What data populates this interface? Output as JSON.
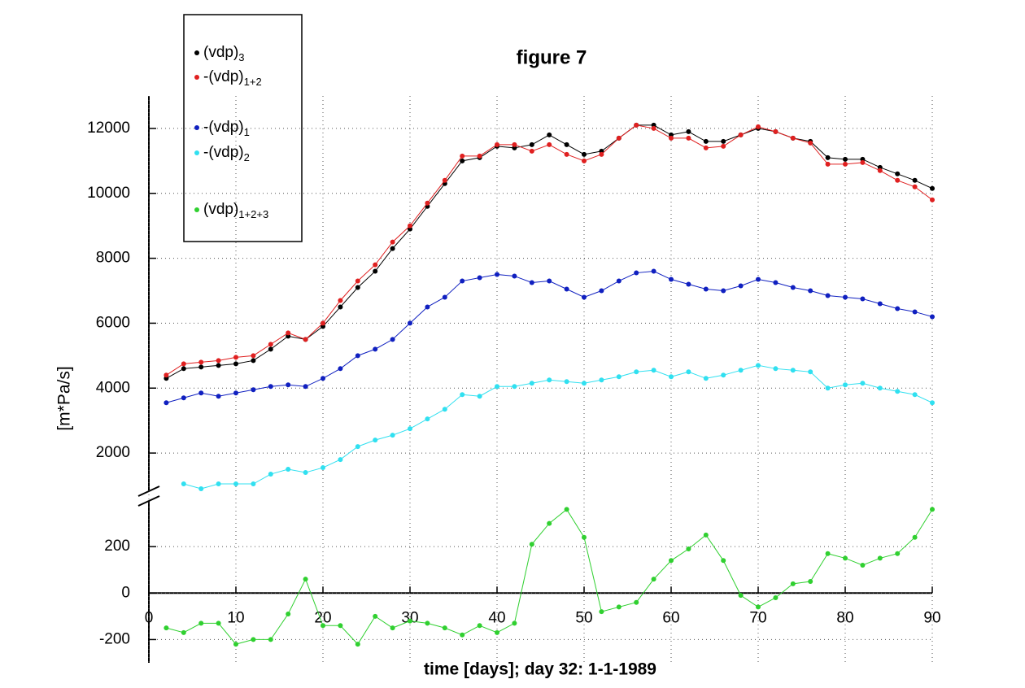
{
  "chart_data": {
    "type": "line",
    "title": "figure 7",
    "x_label": "time [days]; day 32: 1-1-1989",
    "y_label": "[m*Pa/s]",
    "x": [
      2,
      4,
      6,
      8,
      10,
      12,
      14,
      16,
      18,
      20,
      22,
      24,
      26,
      28,
      30,
      32,
      34,
      36,
      38,
      40,
      42,
      44,
      46,
      48,
      50,
      52,
      54,
      56,
      58,
      60,
      62,
      64,
      66,
      68,
      70,
      72,
      74,
      76,
      78,
      80,
      82,
      84,
      86,
      88,
      90
    ],
    "xlim": [
      0,
      90
    ],
    "xticks": [
      0,
      10,
      20,
      30,
      40,
      50,
      60,
      70,
      80,
      90
    ],
    "ylim": [
      800,
      13000
    ],
    "yticks": [
      2000,
      4000,
      6000,
      8000,
      10000,
      12000
    ],
    "y2lim": [
      -300,
      400
    ],
    "y2ticks": [
      -200,
      0,
      200
    ],
    "grid": true,
    "legend": "upper left",
    "series": [
      {
        "name": "(vdp)",
        "subscript": "3",
        "color": "#000000",
        "values": [
          4300,
          4600,
          4650,
          4700,
          4750,
          4850,
          5200,
          5600,
          5500,
          5900,
          6500,
          7100,
          7600,
          8300,
          8900,
          9600,
          10300,
          11000,
          11100,
          11450,
          11400,
          11500,
          11800,
          11500,
          11200,
          11300,
          11700,
          12100,
          12100,
          11800,
          11900,
          11600,
          11600,
          11800,
          12000,
          11900,
          11700,
          11600,
          11100,
          11050,
          11050,
          10800,
          10600,
          10400,
          10150
        ]
      },
      {
        "name": "-(vdp)",
        "subscript": "1+2",
        "color": "#e02020",
        "values": [
          4400,
          4750,
          4800,
          4850,
          4950,
          5000,
          5350,
          5700,
          5500,
          6000,
          6700,
          7300,
          7800,
          8500,
          9000,
          9700,
          10400,
          11150,
          11150,
          11500,
          11500,
          11300,
          11500,
          11200,
          11000,
          11200,
          11700,
          12100,
          12000,
          11700,
          11700,
          11400,
          11450,
          11800,
          12050,
          11900,
          11700,
          11550,
          10900,
          10900,
          10950,
          10700,
          10400,
          10200,
          9800
        ]
      },
      {
        "name": "-(vdp)",
        "subscript": "1",
        "color": "#1020c0",
        "values": [
          3550,
          3700,
          3850,
          3750,
          3850,
          3950,
          4050,
          4100,
          4050,
          4300,
          4600,
          5000,
          5200,
          5500,
          6000,
          6500,
          6800,
          7300,
          7400,
          7500,
          7450,
          7250,
          7300,
          7050,
          6800,
          7000,
          7300,
          7550,
          7600,
          7350,
          7200,
          7050,
          7000,
          7150,
          7350,
          7250,
          7100,
          7000,
          6850,
          6800,
          6750,
          6600,
          6450,
          6350,
          6200
        ]
      },
      {
        "name": "-(vdp)",
        "subscript": "2",
        "color": "#30e0f0",
        "values": [
          null,
          1050,
          900,
          1050,
          1050,
          1050,
          1350,
          1500,
          1400,
          1550,
          1800,
          2200,
          2400,
          2550,
          2750,
          3050,
          3350,
          3800,
          3750,
          4050,
          4050,
          4150,
          4250,
          4200,
          4150,
          4250,
          4350,
          4500,
          4550,
          4350,
          4500,
          4300,
          4400,
          4550,
          4700,
          4600,
          4550,
          4500,
          4000,
          4100,
          4150,
          4000,
          3900,
          3800,
          3550
        ]
      },
      {
        "name": "(vdp)",
        "subscript": "1+2+3",
        "color": "#30d030",
        "axis": "y2",
        "values": [
          -150,
          -170,
          -130,
          -130,
          -220,
          -200,
          -200,
          -90,
          60,
          -140,
          -140,
          -220,
          -100,
          -150,
          -120,
          -130,
          -150,
          -180,
          -140,
          -170,
          -130,
          210,
          300,
          360,
          240,
          -80,
          -60,
          -40,
          60,
          140,
          190,
          250,
          140,
          -10,
          -60,
          -20,
          40,
          50,
          170,
          150,
          120,
          150,
          170,
          240,
          360
        ]
      }
    ]
  }
}
